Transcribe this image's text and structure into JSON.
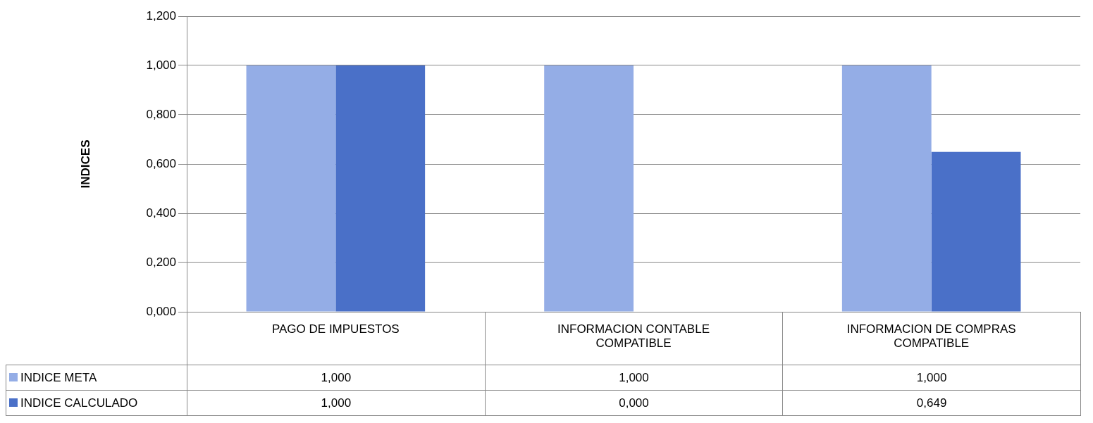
{
  "chart_data": {
    "type": "bar",
    "ylabel": "INDICES",
    "categories": [
      "PAGO DE IMPUESTOS",
      "INFORMACION CONTABLE COMPATIBLE",
      "INFORMACION DE COMPRAS COMPATIBLE"
    ],
    "series": [
      {
        "name": "INDICE META",
        "color": "#94ade6",
        "values": [
          1,
          1,
          1
        ],
        "value_labels": [
          "1,000",
          "1,000",
          "1,000"
        ]
      },
      {
        "name": "INDICE CALCULADO",
        "color": "#4a70c8",
        "values": [
          1,
          0,
          0.649
        ],
        "value_labels": [
          "1,000",
          "0,000",
          "0,649"
        ]
      }
    ],
    "ylim": [
      0,
      1.2
    ],
    "yticks": [
      {
        "value": 0,
        "label": "0,000"
      },
      {
        "value": 0.2,
        "label": "0,200"
      },
      {
        "value": 0.4,
        "label": "0,400"
      },
      {
        "value": 0.6,
        "label": "0,600"
      },
      {
        "value": 0.8,
        "label": "0,800"
      },
      {
        "value": 1,
        "label": "1,000"
      },
      {
        "value": 1.2,
        "label": "1,200"
      }
    ],
    "grid": "y",
    "legend": "bottom"
  }
}
